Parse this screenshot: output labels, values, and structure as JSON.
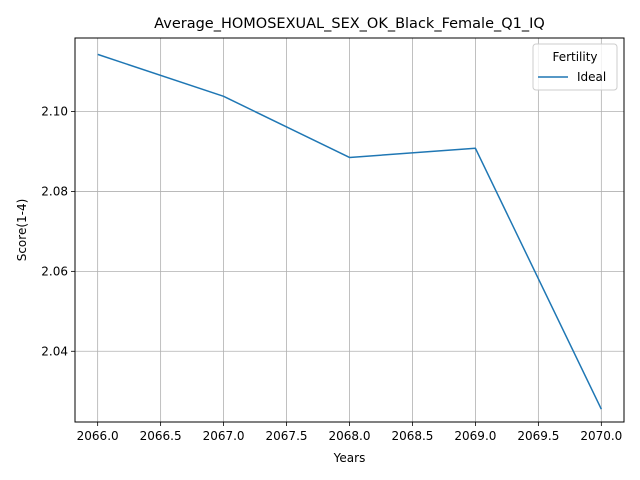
{
  "chart_data": {
    "type": "line",
    "title": "Average_HOMOSEXUAL_SEX_OK_Black_Female_Q1_IQ",
    "xlabel": "Years",
    "ylabel": "Score(1-4)",
    "xlim": [
      2065.82,
      2070.18
    ],
    "ylim": [
      2.0223,
      2.1184
    ],
    "xticks": [
      2066.0,
      2066.5,
      2067.0,
      2067.5,
      2068.0,
      2068.5,
      2069.0,
      2069.5,
      2070.0
    ],
    "xtick_labels": [
      "2066.0",
      "2066.5",
      "2067.0",
      "2067.5",
      "2068.0",
      "2068.5",
      "2069.0",
      "2069.5",
      "2070.0"
    ],
    "yticks": [
      2.04,
      2.06,
      2.08,
      2.1
    ],
    "ytick_labels": [
      "2.04",
      "2.06",
      "2.08",
      "2.10"
    ],
    "grid": true,
    "legend": {
      "title": "Fertility",
      "position": "top-right"
    },
    "series": [
      {
        "name": "Ideal",
        "color": "#1f77b4",
        "x": [
          2066,
          2067,
          2068,
          2069,
          2070
        ],
        "y": [
          2.1143,
          2.1038,
          2.0885,
          2.0908,
          2.0255
        ]
      }
    ]
  }
}
